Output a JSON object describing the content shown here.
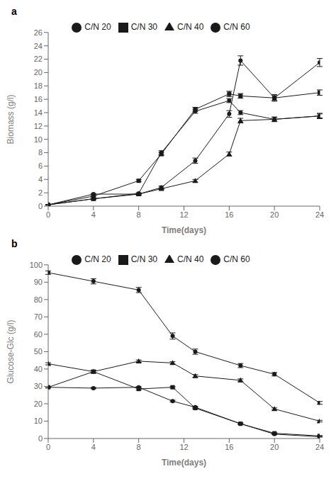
{
  "chart_data": [
    {
      "type": "line",
      "annotations": [
        "a"
      ],
      "xlabel": "Time(days)",
      "ylabel": "Biomass (g/l)",
      "x": [
        0,
        4,
        8,
        10,
        13,
        16,
        17,
        20,
        24
      ],
      "series": [
        {
          "name": "C/N 20",
          "color": "#1a1a1a",
          "marker": "circle",
          "values": [
            0.2,
            1.1,
            1.9,
            8.0,
            14.2,
            15.8,
            14.0,
            13.0,
            13.5
          ],
          "error": [
            0.05,
            0.1,
            0.1,
            0.3,
            0.3,
            0.3,
            0.3,
            0.3,
            0.3
          ]
        },
        {
          "name": "C/N 30",
          "color": "#1a1a1a",
          "marker": "square",
          "values": [
            0.2,
            1.5,
            3.8,
            7.8,
            14.5,
            16.8,
            16.5,
            16.2,
            17.0
          ],
          "error": [
            0.05,
            0.1,
            0.15,
            0.25,
            0.3,
            0.4,
            0.35,
            0.35,
            0.4
          ]
        },
        {
          "name": "C/N 40",
          "color": "#1a1a1a",
          "marker": "triangle",
          "values": [
            0.2,
            1.1,
            1.8,
            2.6,
            3.8,
            7.8,
            12.8,
            13.0,
            13.5
          ],
          "error": [
            0.05,
            0.1,
            0.1,
            0.1,
            0.2,
            0.3,
            0.35,
            0.35,
            0.4
          ]
        },
        {
          "name": "C/N 60",
          "color": "#1a1a1a",
          "marker": "circle",
          "values": [
            0.2,
            1.8,
            1.8,
            2.8,
            6.8,
            13.8,
            21.8,
            16.2,
            21.5
          ],
          "error": [
            0.05,
            0.1,
            0.1,
            0.2,
            0.4,
            0.5,
            0.7,
            0.5,
            0.6
          ]
        }
      ],
      "xlim": [
        0,
        24
      ],
      "xticks": [
        0,
        4,
        8,
        12,
        16,
        20,
        24
      ],
      "ylim": [
        0,
        26
      ],
      "yticks": [
        0,
        2,
        4,
        6,
        8,
        10,
        12,
        14,
        16,
        18,
        20,
        22,
        24,
        26
      ],
      "grid": false,
      "legend": "top"
    },
    {
      "type": "line",
      "annotations": [
        "b"
      ],
      "xlabel": "Time(days)",
      "ylabel": "Glucose-Glc (g/l)",
      "x": [
        0,
        4,
        8,
        11,
        13,
        17,
        20,
        24
      ],
      "series": [
        {
          "name": "C/N 20",
          "color": "#1a1a1a",
          "marker": "circle",
          "values": [
            29.5,
            29.0,
            29.5,
            21.5,
            18.0,
            8.5,
            2.5,
            1.0
          ],
          "error": [
            0.4,
            0.4,
            0.4,
            0.5,
            0.5,
            0.4,
            0.3,
            0.2
          ]
        },
        {
          "name": "C/N 30",
          "color": "#1a1a1a",
          "marker": "square",
          "values": [
            29.5,
            38.5,
            28.5,
            29.5,
            17.5,
            8.5,
            3.0,
            1.5
          ],
          "error": [
            0.4,
            0.8,
            0.6,
            0.5,
            0.5,
            0.4,
            0.3,
            0.2
          ]
        },
        {
          "name": "C/N 40",
          "color": "#1a1a1a",
          "marker": "triangle",
          "values": [
            43.0,
            38.5,
            44.5,
            43.5,
            36.0,
            33.5,
            17.0,
            10.0
          ],
          "error": [
            0.6,
            0.7,
            0.7,
            0.7,
            0.8,
            0.8,
            0.6,
            0.5
          ]
        },
        {
          "name": "C/N 60",
          "color": "#1a1a1a",
          "marker": "circle",
          "values": [
            95.5,
            90.5,
            85.5,
            59.0,
            50.0,
            42.0,
            37.0,
            20.5
          ],
          "error": [
            1.0,
            1.5,
            1.5,
            1.8,
            1.5,
            1.2,
            1.0,
            0.8
          ]
        }
      ],
      "xlim": [
        0,
        24
      ],
      "xticks": [
        0,
        4,
        8,
        12,
        16,
        20,
        24
      ],
      "ylim": [
        0,
        100
      ],
      "yticks": [
        0,
        10,
        20,
        30,
        40,
        50,
        60,
        70,
        80,
        90,
        100
      ],
      "grid": false,
      "legend": "top"
    }
  ]
}
